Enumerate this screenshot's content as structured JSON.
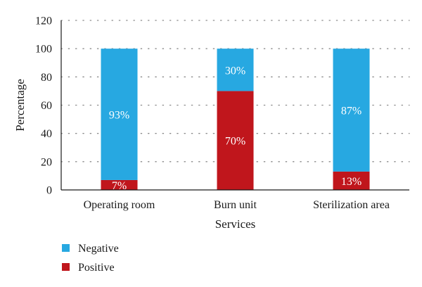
{
  "chart_data": {
    "type": "bar",
    "stacked": true,
    "categories": [
      "Operating room",
      "Burn unit",
      "Sterilization area"
    ],
    "series": [
      {
        "name": "Positive",
        "values": [
          7,
          70,
          13
        ],
        "labels": [
          "7%",
          "70%",
          "13%"
        ],
        "color": "#c0161c",
        "label_color": "#ffffff"
      },
      {
        "name": "Negative",
        "values": [
          93,
          30,
          87
        ],
        "labels": [
          "93%",
          "30%",
          "87%"
        ],
        "color": "#27a8e1",
        "label_color": "#ffffff"
      }
    ],
    "xlabel": "Services",
    "ylabel": "Percentage",
    "ylim": [
      0,
      120
    ],
    "yticks": [
      0,
      20,
      40,
      60,
      80,
      100,
      120
    ],
    "grid": "dotted horizontal",
    "legend_placement": "bottom-left",
    "legend_order": [
      "Negative",
      "Positive"
    ]
  }
}
